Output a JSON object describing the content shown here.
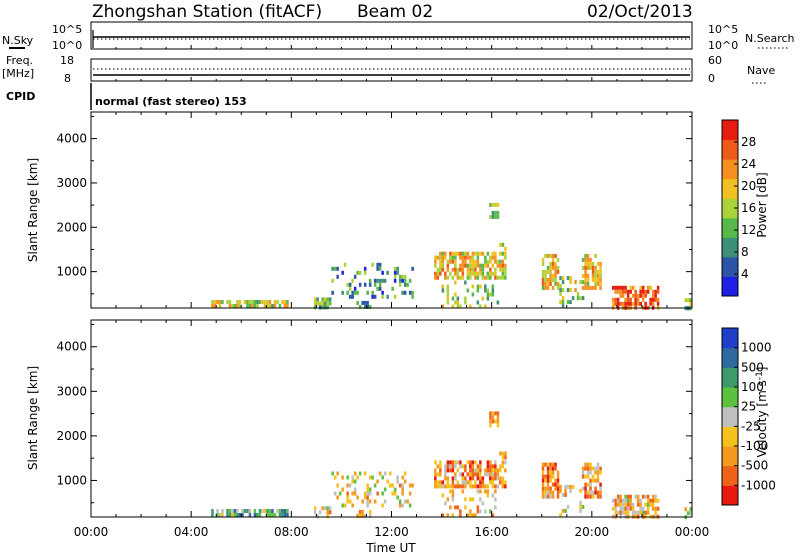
{
  "header": {
    "station": "Zhongshan Station (fitACF)",
    "beam": "Beam 02",
    "date": "02/Oct/2013"
  },
  "params": {
    "nsky_label": "N.Sky",
    "nsky_top": "10^5",
    "nsky_bottom": "10^0",
    "nsearch_label": "N.Search",
    "nsearch_top": "10^5",
    "nsearch_bottom": "10^0",
    "freq_label_1": "Freq.",
    "freq_label_2": "[MHz]",
    "freq_top": "18",
    "freq_bottom": "8",
    "nave_label": "Nave",
    "nave_top": "60",
    "nave_bottom": "0",
    "cpid_label": "CPID",
    "cpid_value": "normal (fast stereo) 153"
  },
  "colors": {
    "power_scale": [
      "#1f1fe6",
      "#2c55a8",
      "#3d8f7a",
      "#58b84a",
      "#a8d43a",
      "#f0c020",
      "#f59020",
      "#ee5a18",
      "#e61c10"
    ],
    "velocity_scale": [
      "#1f3fc8",
      "#2d6aa0",
      "#3d9a6a",
      "#5cc040",
      "#c0c0c0",
      "#f5c21d",
      "#f59a1e",
      "#ef6418",
      "#e81a10"
    ]
  },
  "chart_data": [
    {
      "type": "heatmap",
      "title": "Power",
      "xlabel": "",
      "ylabel": "Slant Range [km]",
      "x_range": [
        "00:00",
        "24:00"
      ],
      "x_ticks": [
        "00:00",
        "04:00",
        "08:00",
        "12:00",
        "16:00",
        "20:00",
        "00:00"
      ],
      "ylim": [
        180,
        4600
      ],
      "y_ticks": [
        1000,
        2000,
        3000,
        4000
      ],
      "colorbar": {
        "label": "Power [dB]",
        "range": [
          0,
          32
        ],
        "ticks": [
          4,
          8,
          12,
          16,
          20,
          24,
          28
        ]
      },
      "regions": [
        {
          "t": [
            4.8,
            7.8
          ],
          "r": [
            190,
            360
          ],
          "level": 0.55
        },
        {
          "t": [
            8.9,
            9.5
          ],
          "r": [
            190,
            420
          ],
          "level": 0.4
        },
        {
          "t": [
            10.6,
            11.1
          ],
          "r": [
            190,
            340
          ],
          "level": 0.35
        },
        {
          "t": [
            9.6,
            12.8
          ],
          "r": [
            400,
            1200
          ],
          "level": 0.3,
          "scatter": true
        },
        {
          "t": [
            13.7,
            16.5
          ],
          "r": [
            850,
            1450
          ],
          "level": 0.6
        },
        {
          "t": [
            14.0,
            16.2
          ],
          "r": [
            180,
            800
          ],
          "level": 0.45,
          "scatter": true
        },
        {
          "t": [
            15.9,
            16.2
          ],
          "r": [
            2200,
            2550
          ],
          "level": 0.45
        },
        {
          "t": [
            16.3,
            16.5
          ],
          "r": [
            1500,
            1650
          ],
          "level": 0.4
        },
        {
          "t": [
            18.0,
            18.6
          ],
          "r": [
            600,
            1400
          ],
          "level": 0.65
        },
        {
          "t": [
            18.7,
            19.6
          ],
          "r": [
            200,
            900
          ],
          "level": 0.45,
          "scatter": true
        },
        {
          "t": [
            19.6,
            20.3
          ],
          "r": [
            600,
            1400
          ],
          "level": 0.6
        },
        {
          "t": [
            20.8,
            22.6
          ],
          "r": [
            180,
            680
          ],
          "level": 0.85
        },
        {
          "t": [
            23.7,
            23.9
          ],
          "r": [
            200,
            400
          ],
          "level": 0.4
        }
      ]
    },
    {
      "type": "heatmap",
      "title": "Velocity",
      "xlabel": "Time UT",
      "ylabel": "Slant Range [km]",
      "x_range": [
        "00:00",
        "24:00"
      ],
      "x_ticks": [
        "00:00",
        "04:00",
        "08:00",
        "12:00",
        "16:00",
        "20:00",
        "00:00"
      ],
      "ylim": [
        180,
        4600
      ],
      "y_ticks": [
        1000,
        2000,
        3000,
        4000
      ],
      "colorbar": {
        "label": "Velocity [m s^-1]",
        "ticks": [
          "1000",
          "500",
          "100",
          "25",
          "-25",
          "-100",
          "-500",
          "-1000"
        ]
      },
      "regions": [
        {
          "t": [
            4.8,
            7.8
          ],
          "r": [
            190,
            360
          ],
          "level": 0.35
        },
        {
          "t": [
            8.9,
            9.5
          ],
          "r": [
            190,
            420
          ],
          "level": 0.6
        },
        {
          "t": [
            10.6,
            11.1
          ],
          "r": [
            190,
            340
          ],
          "level": 0.65
        },
        {
          "t": [
            9.6,
            12.8
          ],
          "r": [
            400,
            1200
          ],
          "level": 0.6,
          "scatter": true
        },
        {
          "t": [
            13.7,
            16.5
          ],
          "r": [
            850,
            1450
          ],
          "level": 0.7
        },
        {
          "t": [
            14.0,
            16.2
          ],
          "r": [
            180,
            800
          ],
          "level": 0.65,
          "scatter": true
        },
        {
          "t": [
            15.9,
            16.2
          ],
          "r": [
            2200,
            2550
          ],
          "level": 0.65
        },
        {
          "t": [
            16.3,
            16.5
          ],
          "r": [
            1500,
            1650
          ],
          "level": 0.6
        },
        {
          "t": [
            18.0,
            18.6
          ],
          "r": [
            600,
            1400
          ],
          "level": 0.75
        },
        {
          "t": [
            18.7,
            19.6
          ],
          "r": [
            200,
            900
          ],
          "level": 0.6,
          "scatter": true
        },
        {
          "t": [
            19.6,
            20.3
          ],
          "r": [
            600,
            1400
          ],
          "level": 0.7
        },
        {
          "t": [
            20.8,
            22.6
          ],
          "r": [
            180,
            680
          ],
          "level": 0.65
        },
        {
          "t": [
            23.7,
            23.9
          ],
          "r": [
            200,
            400
          ],
          "level": 0.55
        }
      ]
    }
  ]
}
